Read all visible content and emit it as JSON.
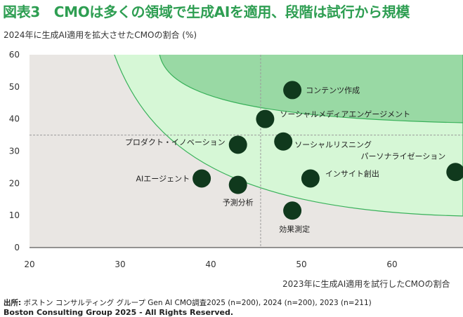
{
  "title": "図表3　CMOは多くの領域で生成AIを適用、段階は試行から規模",
  "subtitle": "2024年に生成AI適用を拡大させたCMOの割合 (%)",
  "source_label": "出所:",
  "source_text": " ボストン コンサルティング グループ Gen AI CMO調査2025 (n=200), 2024 (n=200), 2023 (n=211)",
  "copyright": "Boston Consulting Group 2025 - All Rights Reserved.",
  "colors": {
    "title": "#2e9e52",
    "plot_bg": "#e9e6e3",
    "zone_light": "#d6f7d6",
    "zone_dark": "#99d9a4",
    "zone_edge": "#39b15a",
    "point": "#10391d"
  },
  "chart_data": {
    "type": "scatter",
    "xlabel": "2023年に生成AI適用を試行したCMOの割合",
    "ylabel": "2024年に生成AI適用を拡大させたCMOの割合 (%)",
    "xlim": [
      20,
      65
    ],
    "ylim": [
      0,
      60
    ],
    "xticks": [
      20,
      30,
      40,
      50,
      60
    ],
    "yticks": [
      0,
      10,
      20,
      30,
      40,
      50,
      60
    ],
    "reference_lines": {
      "x": 45.5,
      "y": 35
    },
    "points": [
      {
        "label": "コンテンツ作成",
        "x": 49,
        "y": 49
      },
      {
        "label": "ソーシャルメディアエンゲージメント",
        "x": 46,
        "y": 40
      },
      {
        "label": "プロダクト・イノベーション",
        "x": 43,
        "y": 32
      },
      {
        "label": "ソーシャルリスニング",
        "x": 48,
        "y": 33
      },
      {
        "label": "パーソナライゼーション",
        "x": 67,
        "y": 23.5
      },
      {
        "label": "AIエージェント",
        "x": 39,
        "y": 21.5
      },
      {
        "label": "インサイト創出",
        "x": 51,
        "y": 21.5
      },
      {
        "label": "予測分析",
        "x": 43,
        "y": 19.5
      },
      {
        "label": "効果測定",
        "x": 49,
        "y": 11.5
      }
    ]
  }
}
